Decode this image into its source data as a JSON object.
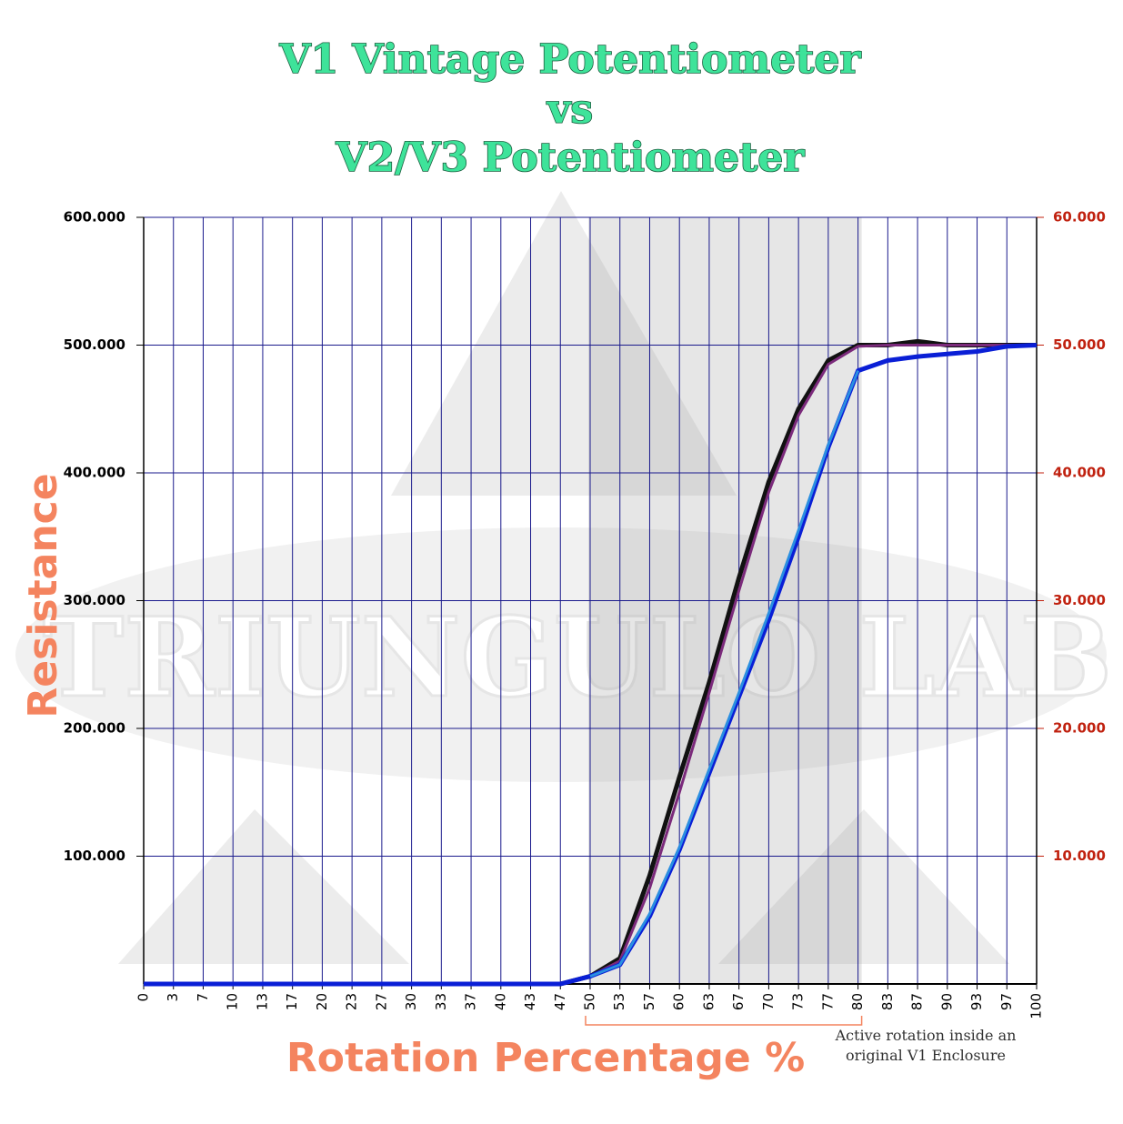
{
  "chart_data": {
    "type": "line",
    "title": [
      "V1 Vintage Potentiometer",
      "vs",
      "V2/V3 Potentiometer"
    ],
    "y_label": "Resistance",
    "x_label": "Rotation Percentage %",
    "watermark": "TRIUNGULO LAB",
    "annotation": {
      "text": [
        "Active rotation inside an",
        "original V1 Enclosure"
      ],
      "range": [
        "50",
        "80"
      ]
    },
    "categories": [
      "0",
      "3",
      "7",
      "10",
      "13",
      "17",
      "20",
      "23",
      "27",
      "30",
      "33",
      "37",
      "40",
      "43",
      "47",
      "50",
      "53",
      "57",
      "60",
      "63",
      "67",
      "70",
      "73",
      "77",
      "80",
      "83",
      "87",
      "90",
      "93",
      "97",
      "100"
    ],
    "series": [
      {
        "color": "#111111",
        "values": [
          0,
          0,
          0,
          0,
          0,
          0,
          0,
          0,
          0,
          0,
          0,
          0,
          0,
          0,
          0,
          6000,
          20000,
          85000,
          162000,
          236000,
          318000,
          393000,
          450000,
          488000,
          500000,
          500000,
          503000,
          500000,
          500000,
          500000,
          500000
        ]
      },
      {
        "color": "#7b2a7b",
        "values": [
          0,
          0,
          0,
          0,
          0,
          0,
          0,
          0,
          0,
          0,
          0,
          0,
          0,
          0,
          0,
          6000,
          18000,
          75000,
          150000,
          228000,
          308000,
          385000,
          445000,
          485000,
          499000,
          500000,
          500000,
          500000,
          500000,
          500000,
          500000
        ]
      },
      {
        "color": "#0a1fd6",
        "axis": "y2",
        "values": [
          0,
          0,
          0,
          0,
          0,
          0,
          0,
          0,
          0,
          0,
          0,
          0,
          0,
          0,
          0,
          600,
          1500,
          5300,
          10500,
          16500,
          22500,
          28500,
          35000,
          42000,
          48000,
          48800,
          49100,
          49300,
          49500,
          49900,
          50000
        ]
      },
      {
        "color": "#2a8fe0",
        "axis": "y2",
        "values": [
          null,
          null,
          null,
          null,
          null,
          null,
          null,
          null,
          null,
          null,
          null,
          null,
          null,
          null,
          null,
          600,
          1500,
          5500,
          10700,
          16800,
          22800,
          29000,
          35500,
          42200,
          48000,
          null,
          null,
          null,
          null,
          null,
          null
        ]
      }
    ],
    "ylim": [
      0,
      600000
    ],
    "yticks": [
      {
        "value": 100000,
        "label": "100.000"
      },
      {
        "value": 200000,
        "label": "200.000"
      },
      {
        "value": 300000,
        "label": "300.000"
      },
      {
        "value": 400000,
        "label": "400.000"
      },
      {
        "value": 500000,
        "label": "500.000"
      },
      {
        "value": 600000,
        "label": "600.000"
      }
    ],
    "y2lim": [
      0,
      60000
    ],
    "y2ticks": [
      {
        "value": 10000,
        "label": "10.000"
      },
      {
        "value": 20000,
        "label": "20.000"
      },
      {
        "value": 30000,
        "label": "30.000"
      },
      {
        "value": 40000,
        "label": "40.000"
      },
      {
        "value": 50000,
        "label": "50.000"
      },
      {
        "value": 60000,
        "label": "60.000"
      }
    ],
    "grid": true,
    "grid_color": "#1a1a8c"
  }
}
